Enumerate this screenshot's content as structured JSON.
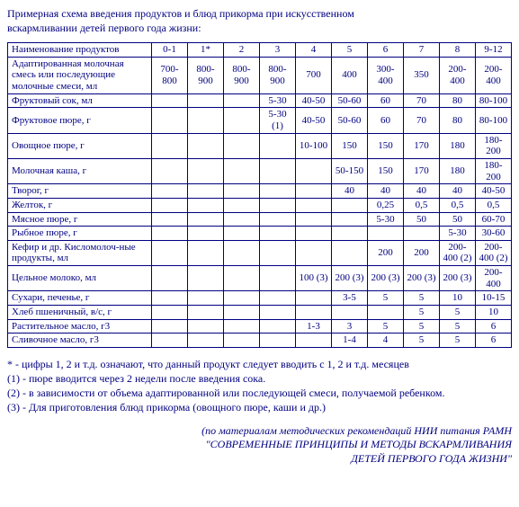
{
  "title_line1": "Примерная схема введения продуктов и блюд прикорма при искусственном",
  "title_line2": "вскармливании детей первого года жизни:",
  "columns": [
    "Наименование продуктов",
    "0-1",
    "1*",
    "2",
    "3",
    "4",
    "5",
    "6",
    "7",
    "8",
    "9-12"
  ],
  "rows": [
    {
      "label": "Адаптированная молочная смесь или последующие молочные смеси, мл",
      "c": [
        "700-800",
        "800-900",
        "800-900",
        "800-900",
        "700",
        "400",
        "300-400",
        "350",
        "200-400",
        "200-400"
      ]
    },
    {
      "label": "Фруктовый сок, мл",
      "c": [
        "",
        "",
        "",
        "5-30",
        "40-50",
        "50-60",
        "60",
        "70",
        "80",
        "80-100"
      ]
    },
    {
      "label": "Фруктовое пюре, г",
      "c": [
        "",
        "",
        "",
        "5-30 (1)",
        "40-50",
        "50-60",
        "60",
        "70",
        "80",
        "80-100"
      ]
    },
    {
      "label": "Овощное пюре, г",
      "c": [
        "",
        "",
        "",
        "",
        "10-100",
        "150",
        "150",
        "170",
        "180",
        "180-200"
      ]
    },
    {
      "label": "Молочная каша, г",
      "c": [
        "",
        "",
        "",
        "",
        "",
        "50-150",
        "150",
        "170",
        "180",
        "180-200"
      ]
    },
    {
      "label": "Творог, г",
      "c": [
        "",
        "",
        "",
        "",
        "",
        "40",
        "40",
        "40",
        "40",
        "40-50"
      ]
    },
    {
      "label": "Желток, г",
      "c": [
        "",
        "",
        "",
        "",
        "",
        "",
        "0,25",
        "0,5",
        "0,5",
        "0,5"
      ]
    },
    {
      "label": "Мясное пюре, г",
      "c": [
        "",
        "",
        "",
        "",
        "",
        "",
        "5-30",
        "50",
        "50",
        "60-70"
      ]
    },
    {
      "label": "Рыбное пюре, г",
      "c": [
        "",
        "",
        "",
        "",
        "",
        "",
        "",
        "",
        "5-30",
        "30-60"
      ]
    },
    {
      "label": "Кефир и др. Кисломолоч-ные продукты, мл",
      "c": [
        "",
        "",
        "",
        "",
        "",
        "",
        "200",
        "200",
        "200-400 (2)",
        "200-400 (2)"
      ]
    },
    {
      "label": "Цельное молоко, мл",
      "c": [
        "",
        "",
        "",
        "",
        "100 (3)",
        "200 (3)",
        "200 (3)",
        "200 (3)",
        "200 (3)",
        "200-400"
      ]
    },
    {
      "label": "Сухари, печенье, г",
      "c": [
        "",
        "",
        "",
        "",
        "",
        "3-5",
        "5",
        "5",
        "10",
        "10-15"
      ]
    },
    {
      "label": "Хлеб пшеничный, в/с, г",
      "c": [
        "",
        "",
        "",
        "",
        "",
        "",
        "",
        "5",
        "5",
        "10"
      ]
    },
    {
      "label": "Растительное масло, г3",
      "c": [
        "",
        "",
        "",
        "",
        "1-3",
        "3",
        "5",
        "5",
        "5",
        "6"
      ]
    },
    {
      "label": "Сливочное масло, г3",
      "c": [
        "",
        "",
        "",
        "",
        "",
        "1-4",
        "4",
        "5",
        "5",
        "6"
      ]
    }
  ],
  "footnotes": [
    "* - цифры 1, 2 и т.д. означают, что данный продукт следует вводить с 1, 2 и т.д. месяцев",
    "(1) - пюре вводится через 2 недели после введения сока.",
    "(2) - в зависимости от объема адаптированной или последующей смеси, получаемой ребенком.",
    "(3) - Для приготовления блюд прикорма (овощного пюре, каши и др.)"
  ],
  "credit": [
    "(по материалам методических рекомендаций НИИ питания РАМН",
    "\"СОВРЕМЕННЫЕ ПРИНЦИПЫ И МЕТОДЫ ВСКАРМЛИВАНИЯ",
    "ДЕТЕЙ ПЕРВОГО ГОДА ЖИЗНИ\""
  ]
}
